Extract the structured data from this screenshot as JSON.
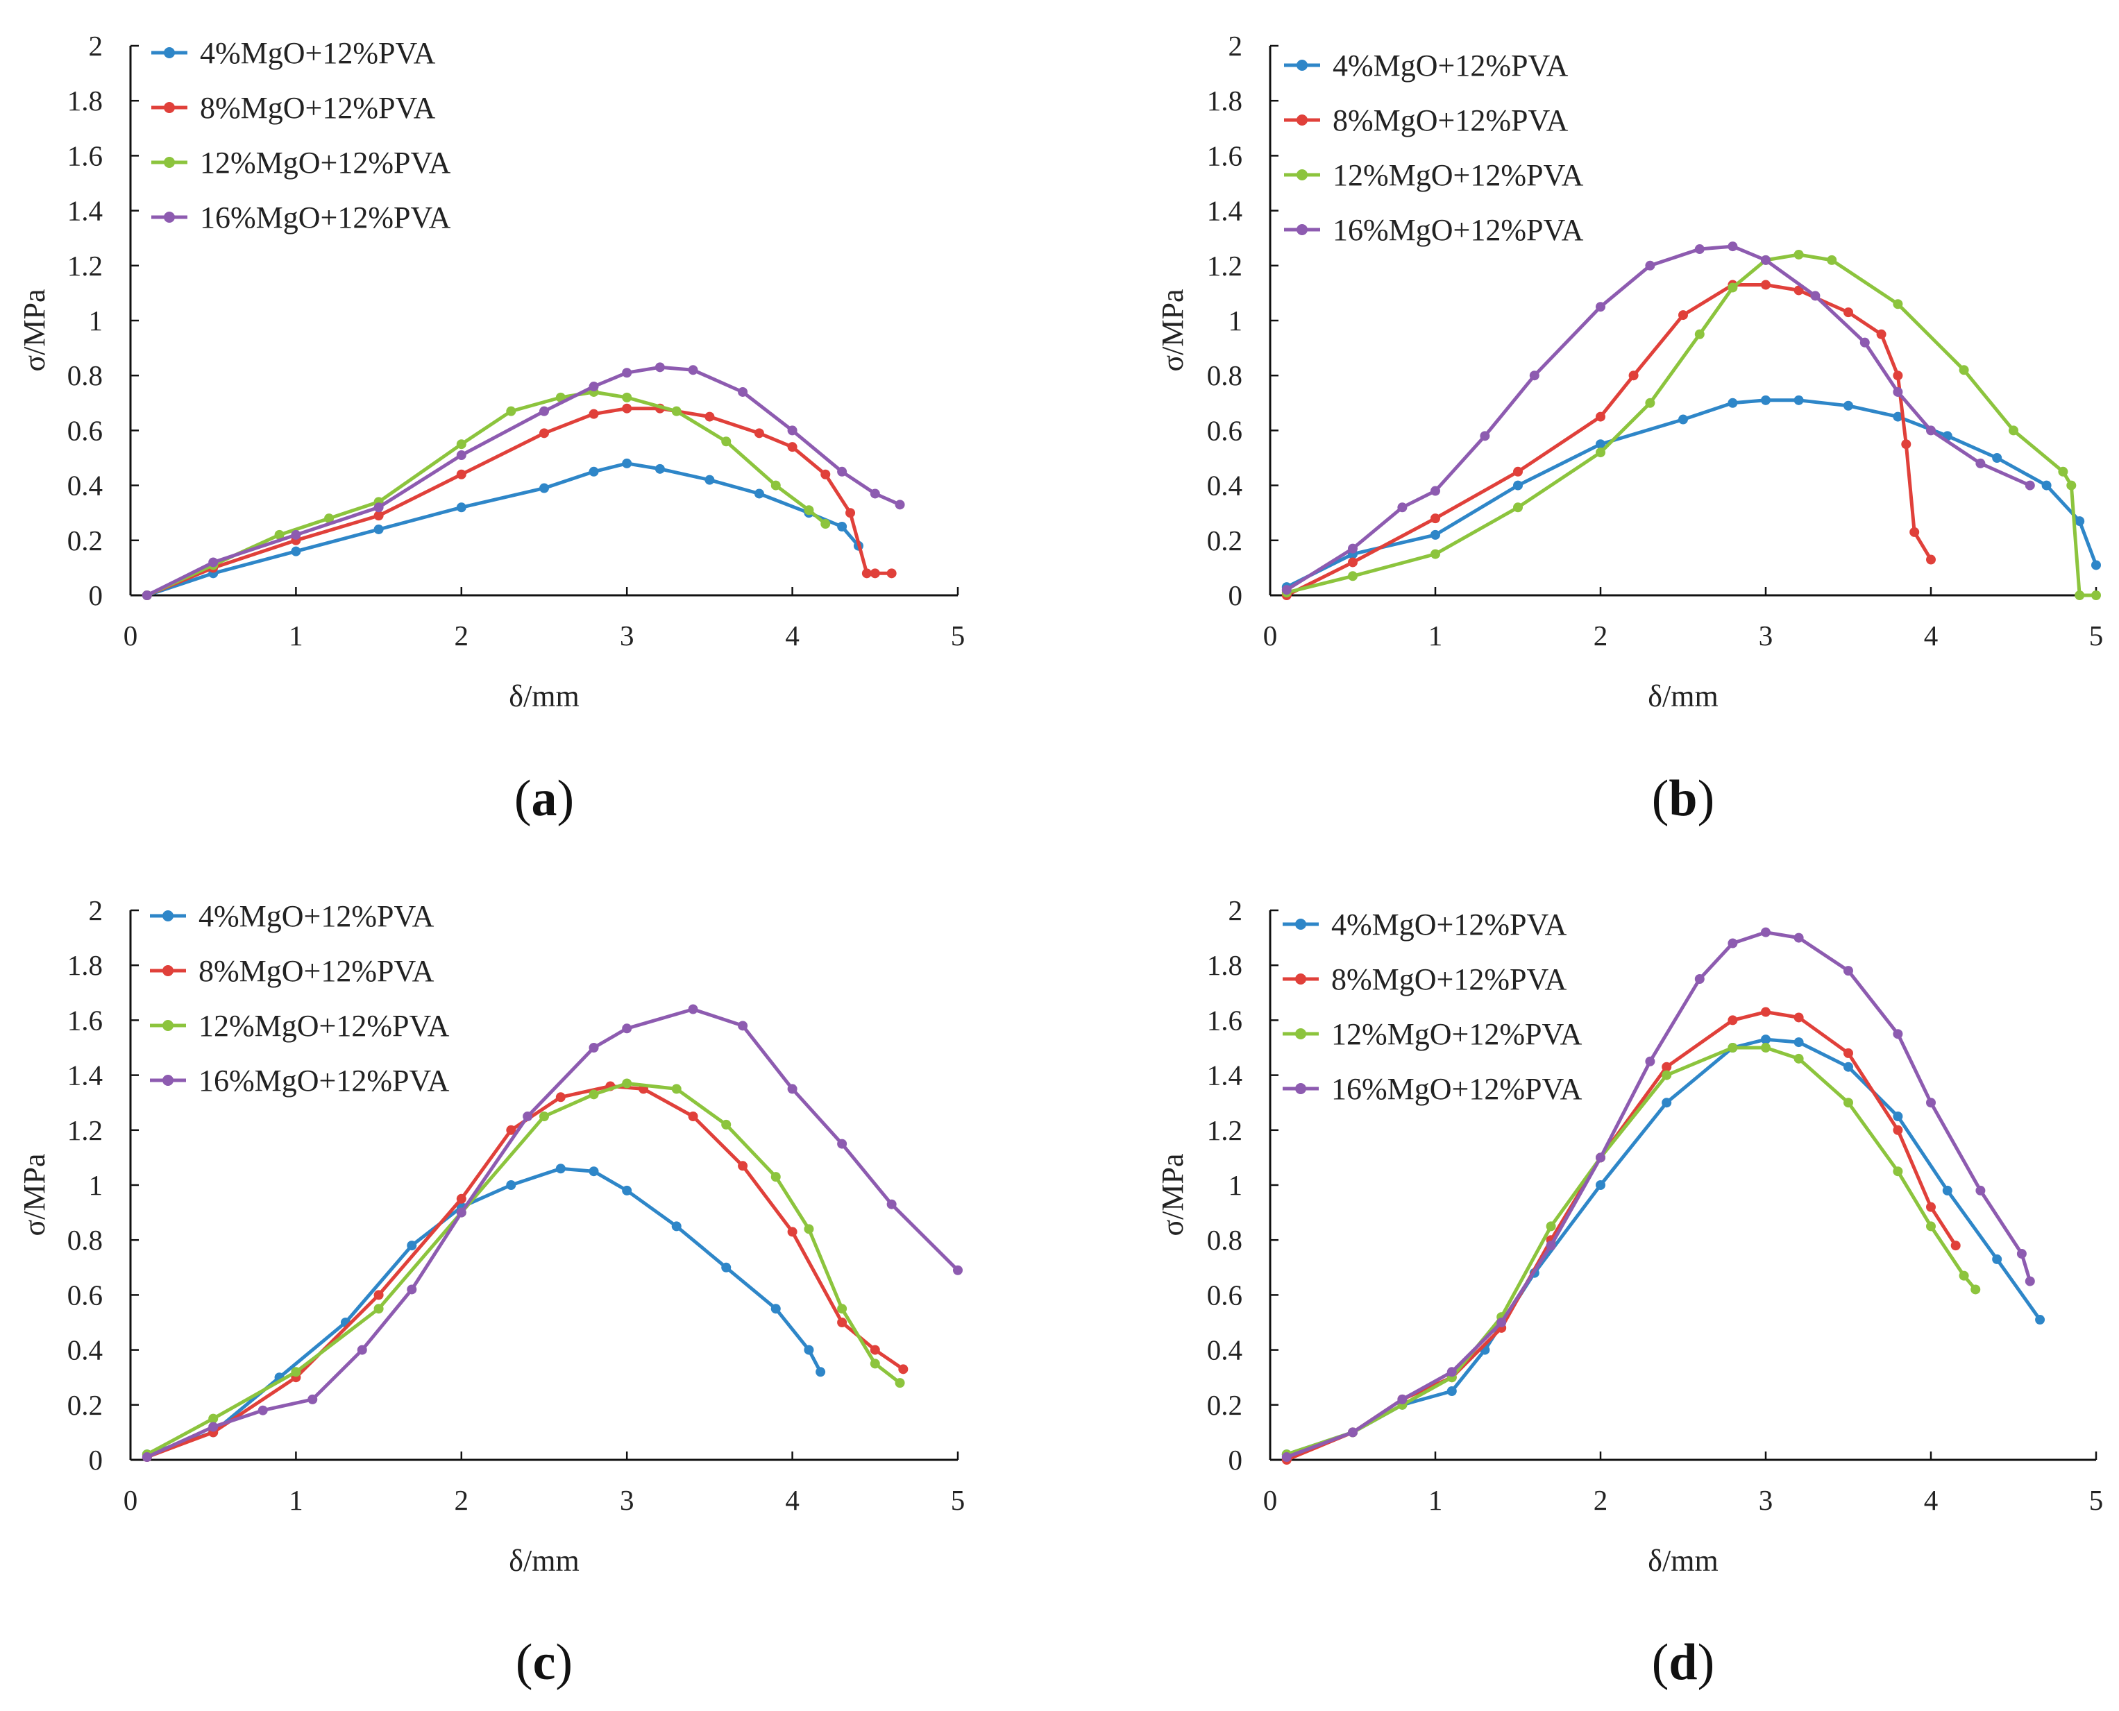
{
  "figure": {
    "palette": {
      "s4": "#2e86c8",
      "s8": "#e0403a",
      "s12": "#8cc43d",
      "s16": "#8d5bb0"
    },
    "legend_labels": [
      "4%MgO+12%PVA",
      "8%MgO+12%PVA",
      "12%MgO+12%PVA",
      "16%MgO+12%PVA"
    ]
  },
  "chart_data": [
    {
      "type": "line",
      "caption_open": "(",
      "caption_letter": "a",
      "caption_close": ")",
      "xlabel": "δ/mm",
      "ylabel": "σ/MPa",
      "xlim": [
        0,
        5
      ],
      "ylim": [
        0,
        2
      ],
      "xticks": [
        "0",
        "1",
        "2",
        "3",
        "4",
        "5"
      ],
      "yticks": [
        "0",
        "0.2",
        "0.4",
        "0.6",
        "0.8",
        "1",
        "1.2",
        "1.4",
        "1.6",
        "1.8",
        "2"
      ],
      "legend_position": "top-left",
      "series": [
        {
          "name": "4%MgO+12%PVA",
          "color": "#2e86c8",
          "x": [
            0.1,
            0.5,
            1.0,
            1.5,
            2.0,
            2.5,
            2.8,
            3.0,
            3.2,
            3.5,
            3.8,
            4.1,
            4.3,
            4.4
          ],
          "y": [
            0.0,
            0.08,
            0.16,
            0.24,
            0.32,
            0.39,
            0.45,
            0.48,
            0.46,
            0.42,
            0.37,
            0.3,
            0.25,
            0.18
          ]
        },
        {
          "name": "8%MgO+12%PVA",
          "color": "#e0403a",
          "x": [
            0.1,
            0.5,
            1.0,
            1.5,
            2.0,
            2.5,
            2.8,
            3.0,
            3.2,
            3.5,
            3.8,
            4.0,
            4.2,
            4.35,
            4.45,
            4.5,
            4.6
          ],
          "y": [
            0.0,
            0.1,
            0.2,
            0.29,
            0.44,
            0.59,
            0.66,
            0.68,
            0.68,
            0.65,
            0.59,
            0.54,
            0.44,
            0.3,
            0.08,
            0.08,
            0.08
          ]
        },
        {
          "name": "12%MgO+12%PVA",
          "color": "#8cc43d",
          "x": [
            0.1,
            0.5,
            0.9,
            1.2,
            1.5,
            2.0,
            2.3,
            2.6,
            2.8,
            3.0,
            3.3,
            3.6,
            3.9,
            4.1,
            4.2
          ],
          "y": [
            0.0,
            0.11,
            0.22,
            0.28,
            0.34,
            0.55,
            0.67,
            0.72,
            0.74,
            0.72,
            0.67,
            0.56,
            0.4,
            0.31,
            0.26
          ]
        },
        {
          "name": "16%MgO+12%PVA",
          "color": "#8d5bb0",
          "x": [
            0.1,
            0.5,
            1.0,
            1.5,
            2.0,
            2.5,
            2.8,
            3.0,
            3.2,
            3.4,
            3.7,
            4.0,
            4.3,
            4.5,
            4.65
          ],
          "y": [
            0.0,
            0.12,
            0.22,
            0.32,
            0.51,
            0.67,
            0.76,
            0.81,
            0.83,
            0.82,
            0.74,
            0.6,
            0.45,
            0.37,
            0.33
          ]
        }
      ]
    },
    {
      "type": "line",
      "caption_open": "(",
      "caption_letter": "b",
      "caption_close": ")",
      "xlabel": "δ/mm",
      "ylabel": "σ/MPa",
      "xlim": [
        0,
        5
      ],
      "ylim": [
        0,
        2
      ],
      "xticks": [
        "0",
        "1",
        "2",
        "3",
        "4",
        "5"
      ],
      "yticks": [
        "0",
        "0.2",
        "0.4",
        "0.6",
        "0.8",
        "1",
        "1.2",
        "1.4",
        "1.6",
        "1.8",
        "2"
      ],
      "legend_position": "top-left",
      "series": [
        {
          "name": "4%MgO+12%PVA",
          "color": "#2e86c8",
          "x": [
            0.1,
            0.5,
            1.0,
            1.5,
            2.0,
            2.5,
            2.8,
            3.0,
            3.2,
            3.5,
            3.8,
            4.1,
            4.4,
            4.7,
            4.9,
            5.0
          ],
          "y": [
            0.03,
            0.15,
            0.22,
            0.4,
            0.55,
            0.64,
            0.7,
            0.71,
            0.71,
            0.69,
            0.65,
            0.58,
            0.5,
            0.4,
            0.27,
            0.11
          ]
        },
        {
          "name": "8%MgO+12%PVA",
          "color": "#e0403a",
          "x": [
            0.1,
            0.5,
            1.0,
            1.5,
            2.0,
            2.2,
            2.5,
            2.8,
            3.0,
            3.2,
            3.5,
            3.7,
            3.8,
            3.85,
            3.9,
            4.0
          ],
          "y": [
            0.0,
            0.12,
            0.28,
            0.45,
            0.65,
            0.8,
            1.02,
            1.13,
            1.13,
            1.11,
            1.03,
            0.95,
            0.8,
            0.55,
            0.23,
            0.13
          ]
        },
        {
          "name": "12%MgO+12%PVA",
          "color": "#8cc43d",
          "x": [
            0.1,
            0.5,
            1.0,
            1.5,
            2.0,
            2.3,
            2.6,
            2.8,
            3.0,
            3.2,
            3.4,
            3.8,
            4.2,
            4.5,
            4.8,
            4.85,
            4.9,
            5.0
          ],
          "y": [
            0.01,
            0.07,
            0.15,
            0.32,
            0.52,
            0.7,
            0.95,
            1.12,
            1.22,
            1.24,
            1.22,
            1.06,
            0.82,
            0.6,
            0.45,
            0.4,
            0.0,
            0.0
          ]
        },
        {
          "name": "16%MgO+12%PVA",
          "color": "#8d5bb0",
          "x": [
            0.1,
            0.5,
            0.8,
            1.0,
            1.3,
            1.6,
            2.0,
            2.3,
            2.6,
            2.8,
            3.0,
            3.3,
            3.6,
            3.8,
            4.0,
            4.3,
            4.6
          ],
          "y": [
            0.02,
            0.17,
            0.32,
            0.38,
            0.58,
            0.8,
            1.05,
            1.2,
            1.26,
            1.27,
            1.22,
            1.09,
            0.92,
            0.74,
            0.6,
            0.48,
            0.4
          ]
        }
      ]
    },
    {
      "type": "line",
      "caption_open": "(",
      "caption_letter": "c",
      "caption_close": ")",
      "xlabel": "δ/mm",
      "ylabel": "σ/MPa",
      "xlim": [
        0,
        5
      ],
      "ylim": [
        0,
        2
      ],
      "xticks": [
        "0",
        "1",
        "2",
        "3",
        "4",
        "5"
      ],
      "yticks": [
        "0",
        "0.2",
        "0.4",
        "0.6",
        "0.8",
        "1",
        "1.2",
        "1.4",
        "1.6",
        "1.8",
        "2"
      ],
      "legend_position": "top-left",
      "series": [
        {
          "name": "4%MgO+12%PVA",
          "color": "#2e86c8",
          "x": [
            0.1,
            0.5,
            0.9,
            1.3,
            1.7,
            2.0,
            2.3,
            2.6,
            2.8,
            3.0,
            3.3,
            3.6,
            3.9,
            4.1,
            4.17
          ],
          "y": [
            0.02,
            0.1,
            0.3,
            0.5,
            0.78,
            0.92,
            1.0,
            1.06,
            1.05,
            0.98,
            0.85,
            0.7,
            0.55,
            0.4,
            0.32
          ]
        },
        {
          "name": "8%MgO+12%PVA",
          "color": "#e0403a",
          "x": [
            0.1,
            0.5,
            1.0,
            1.5,
            2.0,
            2.3,
            2.6,
            2.9,
            3.1,
            3.4,
            3.7,
            4.0,
            4.3,
            4.5,
            4.67
          ],
          "y": [
            0.01,
            0.1,
            0.3,
            0.6,
            0.95,
            1.2,
            1.32,
            1.36,
            1.35,
            1.25,
            1.07,
            0.83,
            0.5,
            0.4,
            0.33
          ]
        },
        {
          "name": "12%MgO+12%PVA",
          "color": "#8cc43d",
          "x": [
            0.1,
            0.5,
            1.0,
            1.5,
            2.0,
            2.5,
            2.8,
            3.0,
            3.3,
            3.6,
            3.9,
            4.1,
            4.3,
            4.5,
            4.65
          ],
          "y": [
            0.02,
            0.15,
            0.32,
            0.55,
            0.9,
            1.25,
            1.33,
            1.37,
            1.35,
            1.22,
            1.03,
            0.84,
            0.55,
            0.35,
            0.28
          ]
        },
        {
          "name": "16%MgO+12%PVA",
          "color": "#8d5bb0",
          "x": [
            0.1,
            0.5,
            0.8,
            1.1,
            1.4,
            1.7,
            2.0,
            2.4,
            2.8,
            3.0,
            3.4,
            3.7,
            4.0,
            4.3,
            4.6,
            5.0
          ],
          "y": [
            0.01,
            0.12,
            0.18,
            0.22,
            0.4,
            0.62,
            0.9,
            1.25,
            1.5,
            1.57,
            1.64,
            1.58,
            1.35,
            1.15,
            0.93,
            0.69
          ]
        }
      ]
    },
    {
      "type": "line",
      "caption_open": "(",
      "caption_letter": "d",
      "caption_close": ")",
      "xlabel": "δ/mm",
      "ylabel": "σ/MPa",
      "xlim": [
        0,
        5
      ],
      "ylim": [
        0,
        2
      ],
      "xticks": [
        "0",
        "1",
        "2",
        "3",
        "4",
        "5"
      ],
      "yticks": [
        "0",
        "0.2",
        "0.4",
        "0.6",
        "0.8",
        "1",
        "1.2",
        "1.4",
        "1.6",
        "1.8",
        "2"
      ],
      "legend_position": "top-left",
      "series": [
        {
          "name": "4%MgO+12%PVA",
          "color": "#2e86c8",
          "x": [
            0.1,
            0.5,
            0.8,
            1.1,
            1.3,
            1.6,
            2.0,
            2.4,
            2.8,
            3.0,
            3.2,
            3.5,
            3.8,
            4.1,
            4.4,
            4.66
          ],
          "y": [
            0.02,
            0.1,
            0.2,
            0.25,
            0.4,
            0.68,
            1.0,
            1.3,
            1.5,
            1.53,
            1.52,
            1.43,
            1.25,
            0.98,
            0.73,
            0.51
          ]
        },
        {
          "name": "8%MgO+12%PVA",
          "color": "#e0403a",
          "x": [
            0.1,
            0.5,
            0.8,
            1.1,
            1.4,
            1.7,
            2.0,
            2.4,
            2.8,
            3.0,
            3.2,
            3.5,
            3.8,
            4.0,
            4.15
          ],
          "y": [
            0.0,
            0.1,
            0.22,
            0.3,
            0.48,
            0.8,
            1.1,
            1.43,
            1.6,
            1.63,
            1.61,
            1.48,
            1.2,
            0.92,
            0.78
          ]
        },
        {
          "name": "12%MgO+12%PVA",
          "color": "#8cc43d",
          "x": [
            0.1,
            0.5,
            0.8,
            1.1,
            1.4,
            1.7,
            2.0,
            2.4,
            2.8,
            3.0,
            3.2,
            3.5,
            3.8,
            4.0,
            4.2,
            4.27
          ],
          "y": [
            0.02,
            0.1,
            0.2,
            0.3,
            0.52,
            0.85,
            1.1,
            1.4,
            1.5,
            1.5,
            1.46,
            1.3,
            1.05,
            0.85,
            0.67,
            0.62
          ]
        },
        {
          "name": "16%MgO+12%PVA",
          "color": "#8d5bb0",
          "x": [
            0.1,
            0.5,
            0.8,
            1.1,
            1.4,
            1.7,
            2.0,
            2.3,
            2.6,
            2.8,
            3.0,
            3.2,
            3.5,
            3.8,
            4.0,
            4.3,
            4.55,
            4.6
          ],
          "y": [
            0.01,
            0.1,
            0.22,
            0.32,
            0.5,
            0.78,
            1.1,
            1.45,
            1.75,
            1.88,
            1.92,
            1.9,
            1.78,
            1.55,
            1.3,
            0.98,
            0.75,
            0.65
          ]
        }
      ]
    }
  ]
}
